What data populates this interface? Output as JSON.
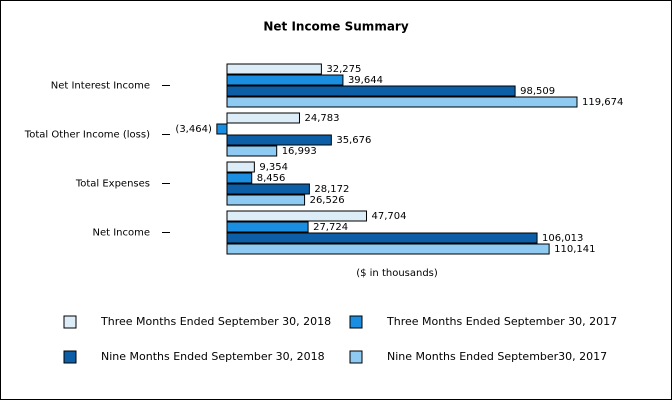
{
  "chart_data": {
    "type": "bar",
    "orientation": "horizontal",
    "title": "Net Income Summary",
    "x_label": "($ in thousands)",
    "categories": [
      "Net Interest Income",
      "Total Other Income (loss)",
      "Total Expenses",
      "Net Income"
    ],
    "legend": "bottom",
    "series": [
      {
        "name": "Three Months Ended September 30, 2018",
        "color": "#dcedf8",
        "values": [
          32275,
          24783,
          9354,
          47704
        ],
        "value_labels": [
          "32,275",
          "24,783",
          "9,354",
          "47,704"
        ]
      },
      {
        "name": "Three Months Ended September 30, 2017",
        "color": "#1a8ee0",
        "values": [
          39644,
          -3464,
          8456,
          27724
        ],
        "value_labels": [
          "39,644",
          "(3,464)",
          "8,456",
          "27,724"
        ]
      },
      {
        "name": "Nine Months Ended September 30, 2018",
        "color": "#0c5fa6",
        "values": [
          98509,
          35676,
          28172,
          106013
        ],
        "value_labels": [
          "98,509",
          "35,676",
          "28,172",
          "106,013"
        ]
      },
      {
        "name": "Nine Months Ended September30, 2017",
        "color": "#8ecaf2",
        "values": [
          119674,
          16993,
          26526,
          110141
        ],
        "value_labels": [
          "119,674",
          "16,993",
          "26,526",
          "110,141"
        ]
      }
    ]
  }
}
